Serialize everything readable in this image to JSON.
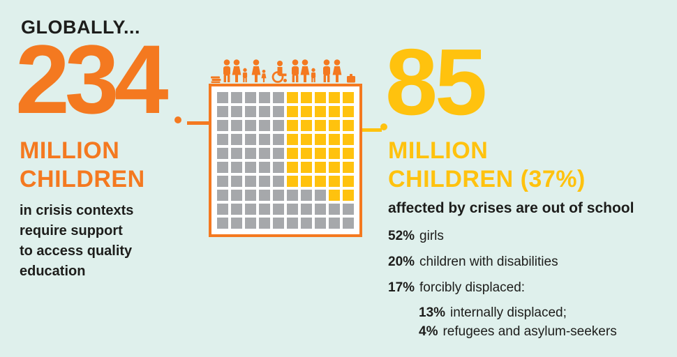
{
  "title": "GLOBALLY...",
  "left_stat": {
    "number": "234",
    "unit_lines": [
      "MILLION",
      "CHILDREN"
    ],
    "description_lines": [
      "in crisis contexts",
      "require support",
      "to access quality",
      "education"
    ]
  },
  "right_stat": {
    "number": "85",
    "unit_lines": [
      "MILLION",
      "CHILDREN (37%)"
    ],
    "description": "affected by crises are out of school",
    "breakdown": [
      {
        "percent": "52%",
        "label": "girls",
        "indent": false
      },
      {
        "percent": "20%",
        "label": "children with disabilities",
        "indent": false
      },
      {
        "percent": "17%",
        "label": "forcibly displaced:",
        "indent": false
      },
      {
        "percent": "13%",
        "label": "internally displaced;",
        "indent": true
      },
      {
        "percent": "4%",
        "label": "refugees and asylum-seekers",
        "indent": true
      }
    ]
  },
  "chart_data": {
    "type": "waffle",
    "rows": 10,
    "cols": 10,
    "total_units": 100,
    "highlighted_units": 37,
    "highlighted_meaning": "85 million children (37%) affected by crises are out of school",
    "base_meaning": "234 million children in crisis contexts require support to access quality education",
    "highlight_color": "#FFC20E",
    "base_color": "#A6A8AB",
    "pattern": {
      "full_rows": 7,
      "right_cols": 5,
      "partial_row": 7,
      "partial_cols": [
        8,
        9
      ]
    }
  },
  "colors": {
    "background": "#DFF0EC",
    "orange": "#F47920",
    "yellow": "#FFC20E",
    "gray": "#A6A8AB",
    "text": "#1D1D1B"
  },
  "icons": {
    "people_row": [
      "books-icon",
      "adult-figure-icon",
      "adult-figure-icon",
      "child-figure-icon",
      "adult-figure-icon",
      "child-figure-icon",
      "wheelchair-user-icon",
      "adult-figure-icon",
      "adult-figure-icon",
      "child-figure-icon",
      "adult-figure-icon",
      "adult-figure-icon",
      "suitcase-icon"
    ]
  }
}
